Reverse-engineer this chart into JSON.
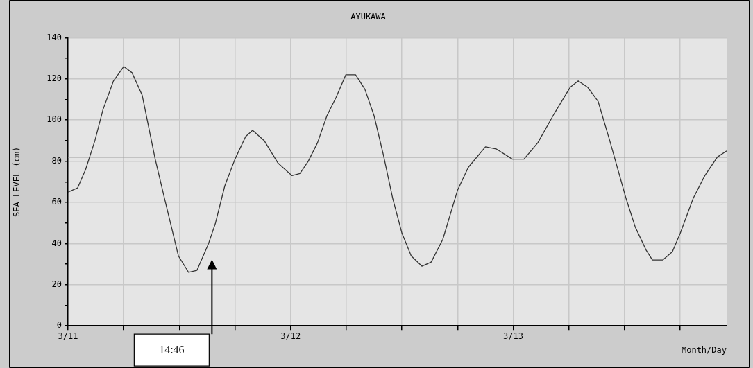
{
  "chart_data": {
    "type": "line",
    "title": "AYUKAWA",
    "xlabel": "Month/Day",
    "ylabel": "SEA LEVEL (cm)",
    "x": [
      "--03-11T00:00",
      "--03-11T01:02",
      "--03-11T01:54",
      "--03-11T02:54",
      "--03-11T03:46",
      "--03-11T04:54",
      "--03-11T06:01",
      "--03-11T06:54",
      "--03-11T08:00",
      "--03-11T09:24",
      "--03-11T10:24",
      "--03-11T11:54",
      "--03-11T13:00",
      "--03-11T13:54",
      "--03-11T15:09",
      "--03-11T15:54",
      "--03-11T16:54",
      "--03-11T18:00",
      "--03-11T19:09",
      "--03-11T19:54",
      "--03-11T21:09",
      "--03-11T22:39",
      "--03-12T00:09",
      "--03-12T01:00",
      "--03-12T01:54",
      "--03-12T02:54",
      "--03-12T03:54",
      "--03-12T04:54",
      "--03-12T05:57",
      "--03-12T07:00",
      "--03-12T08:00",
      "--03-12T09:00",
      "--03-12T10:00",
      "--03-12T11:00",
      "--03-12T12:00",
      "--03-12T13:00",
      "--03-12T14:09",
      "--03-12T15:09",
      "--03-12T16:24",
      "--03-12T18:00",
      "--03-12T19:09",
      "--03-12T21:00",
      "--03-12T22:09",
      "--03-12T23:54",
      "--03-13T01:09",
      "--03-13T02:39",
      "--03-13T04:24",
      "--03-13T06:09",
      "--03-13T07:00",
      "--03-13T08:00",
      "--03-13T09:09",
      "--03-13T10:24",
      "--03-13T12:09",
      "--03-13T13:09",
      "--03-13T14:18",
      "--03-13T15:00",
      "--03-13T16:06",
      "--03-13T17:09",
      "--03-13T18:00",
      "--03-13T19:24",
      "--03-13T20:39",
      "--03-13T22:00",
      "--03-13T23:00"
    ],
    "series": [
      {
        "color": "#333333",
        "values": [
          65,
          67,
          76,
          90,
          105,
          119,
          126,
          123,
          112,
          81,
          62,
          34,
          26,
          27,
          40,
          50,
          68,
          81,
          92,
          95,
          90,
          79,
          73,
          74,
          80,
          89,
          102,
          111,
          122,
          122,
          115,
          102,
          83,
          62,
          45,
          34,
          29,
          31,
          42,
          66,
          77,
          87,
          86,
          81,
          81,
          89,
          103,
          116,
          119,
          116,
          109,
          90,
          62,
          48,
          37,
          32,
          32,
          36,
          45,
          62,
          73,
          82,
          85
        ]
      }
    ],
    "xlim": [
      "--03-11",
      "--03-13T23:00"
    ],
    "xticks": [
      {
        "value": "--03-11",
        "label": "3/11"
      },
      {
        "value": "--03-11T06:00",
        "label": null
      },
      {
        "value": "--03-11T12:00",
        "label": null
      },
      {
        "value": "--03-11T18:00",
        "label": null
      },
      {
        "value": "--03-12",
        "label": "3/12"
      },
      {
        "value": "--03-12T06:00",
        "label": null
      },
      {
        "value": "--03-12T12:00",
        "label": null
      },
      {
        "value": "--03-12T18:00",
        "label": null
      },
      {
        "value": "--03-13",
        "label": "3/13"
      },
      {
        "value": "--03-13T06:00",
        "label": null
      },
      {
        "value": "--03-13T12:00",
        "label": null
      },
      {
        "value": "--03-13T18:00",
        "label": null
      }
    ],
    "ylim": [
      0,
      140
    ],
    "yticks": [
      0,
      {
        "value": 10,
        "label": null
      },
      20,
      {
        "value": 30,
        "label": null
      },
      40,
      {
        "value": 50,
        "label": null
      },
      60,
      {
        "value": 70,
        "label": null
      },
      80,
      {
        "value": 90,
        "label": null
      },
      100,
      {
        "value": 110,
        "label": null
      },
      120,
      {
        "value": 130,
        "label": null
      },
      140
    ],
    "ref_lines": [
      {
        "axis": "y",
        "value": 82,
        "color": "#a0a0a0"
      }
    ],
    "annotations": [
      "14:46"
    ],
    "grid": true,
    "legend": false,
    "marker": "none",
    "line_style": "solid"
  }
}
